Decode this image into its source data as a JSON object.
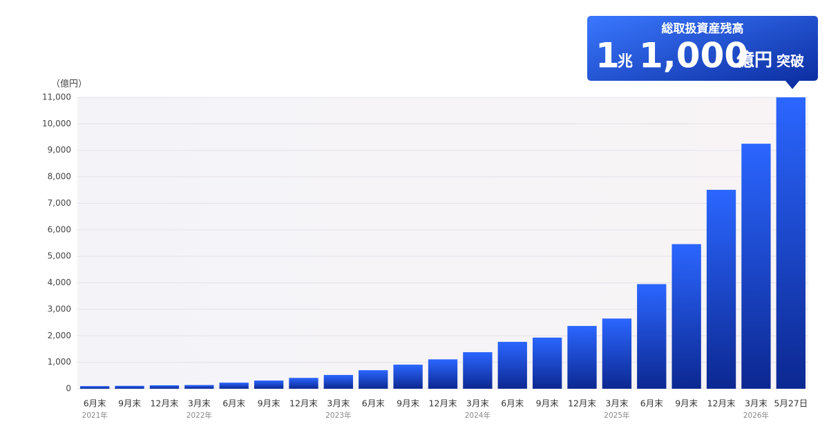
{
  "chart_data": {
    "type": "bar",
    "y_label": "（億円）",
    "categories": [
      "6月末",
      "9月末",
      "12月末",
      "3月末",
      "6月末",
      "9月末",
      "12月末",
      "3月末",
      "6月末",
      "9月末",
      "12月末",
      "3月末",
      "6月末",
      "9月末",
      "12月末",
      "3月末",
      "6月末",
      "9月末",
      "12月末",
      "3月末",
      "5月27日"
    ],
    "year_labels": [
      "2021年",
      null,
      null,
      "2022年",
      null,
      null,
      null,
      "2023年",
      null,
      null,
      null,
      "2024年",
      null,
      null,
      null,
      "2025年",
      null,
      null,
      null,
      "2026年",
      null
    ],
    "values": [
      100,
      110,
      130,
      140,
      230,
      310,
      410,
      520,
      700,
      910,
      1110,
      1380,
      1770,
      1930,
      2370,
      2650,
      3950,
      5460,
      7510,
      9250,
      11000
    ],
    "color": "#1f55f0",
    "ylim": [
      0,
      11000
    ],
    "yticks": [
      0,
      {
        "value": 1000,
        "label": "1,000"
      },
      {
        "value": 2000,
        "label": "2,000"
      },
      {
        "value": 3000,
        "label": "3,000"
      },
      {
        "value": 4000,
        "label": "4,000"
      },
      {
        "value": 5000,
        "label": "5,000"
      },
      {
        "value": 6000,
        "label": "6,000"
      },
      {
        "value": 7000,
        "label": "7,000"
      },
      {
        "value": 8000,
        "label": "8,000"
      },
      {
        "value": 9000,
        "label": "9,000"
      },
      {
        "value": 10000,
        "label": "10,000"
      },
      {
        "value": 11000,
        "label": "11,000"
      }
    ],
    "grid": true,
    "callout": {
      "title": "総取扱資産残高",
      "parts": [
        "1",
        "兆",
        "1,000",
        "億円",
        "突破"
      ]
    }
  }
}
